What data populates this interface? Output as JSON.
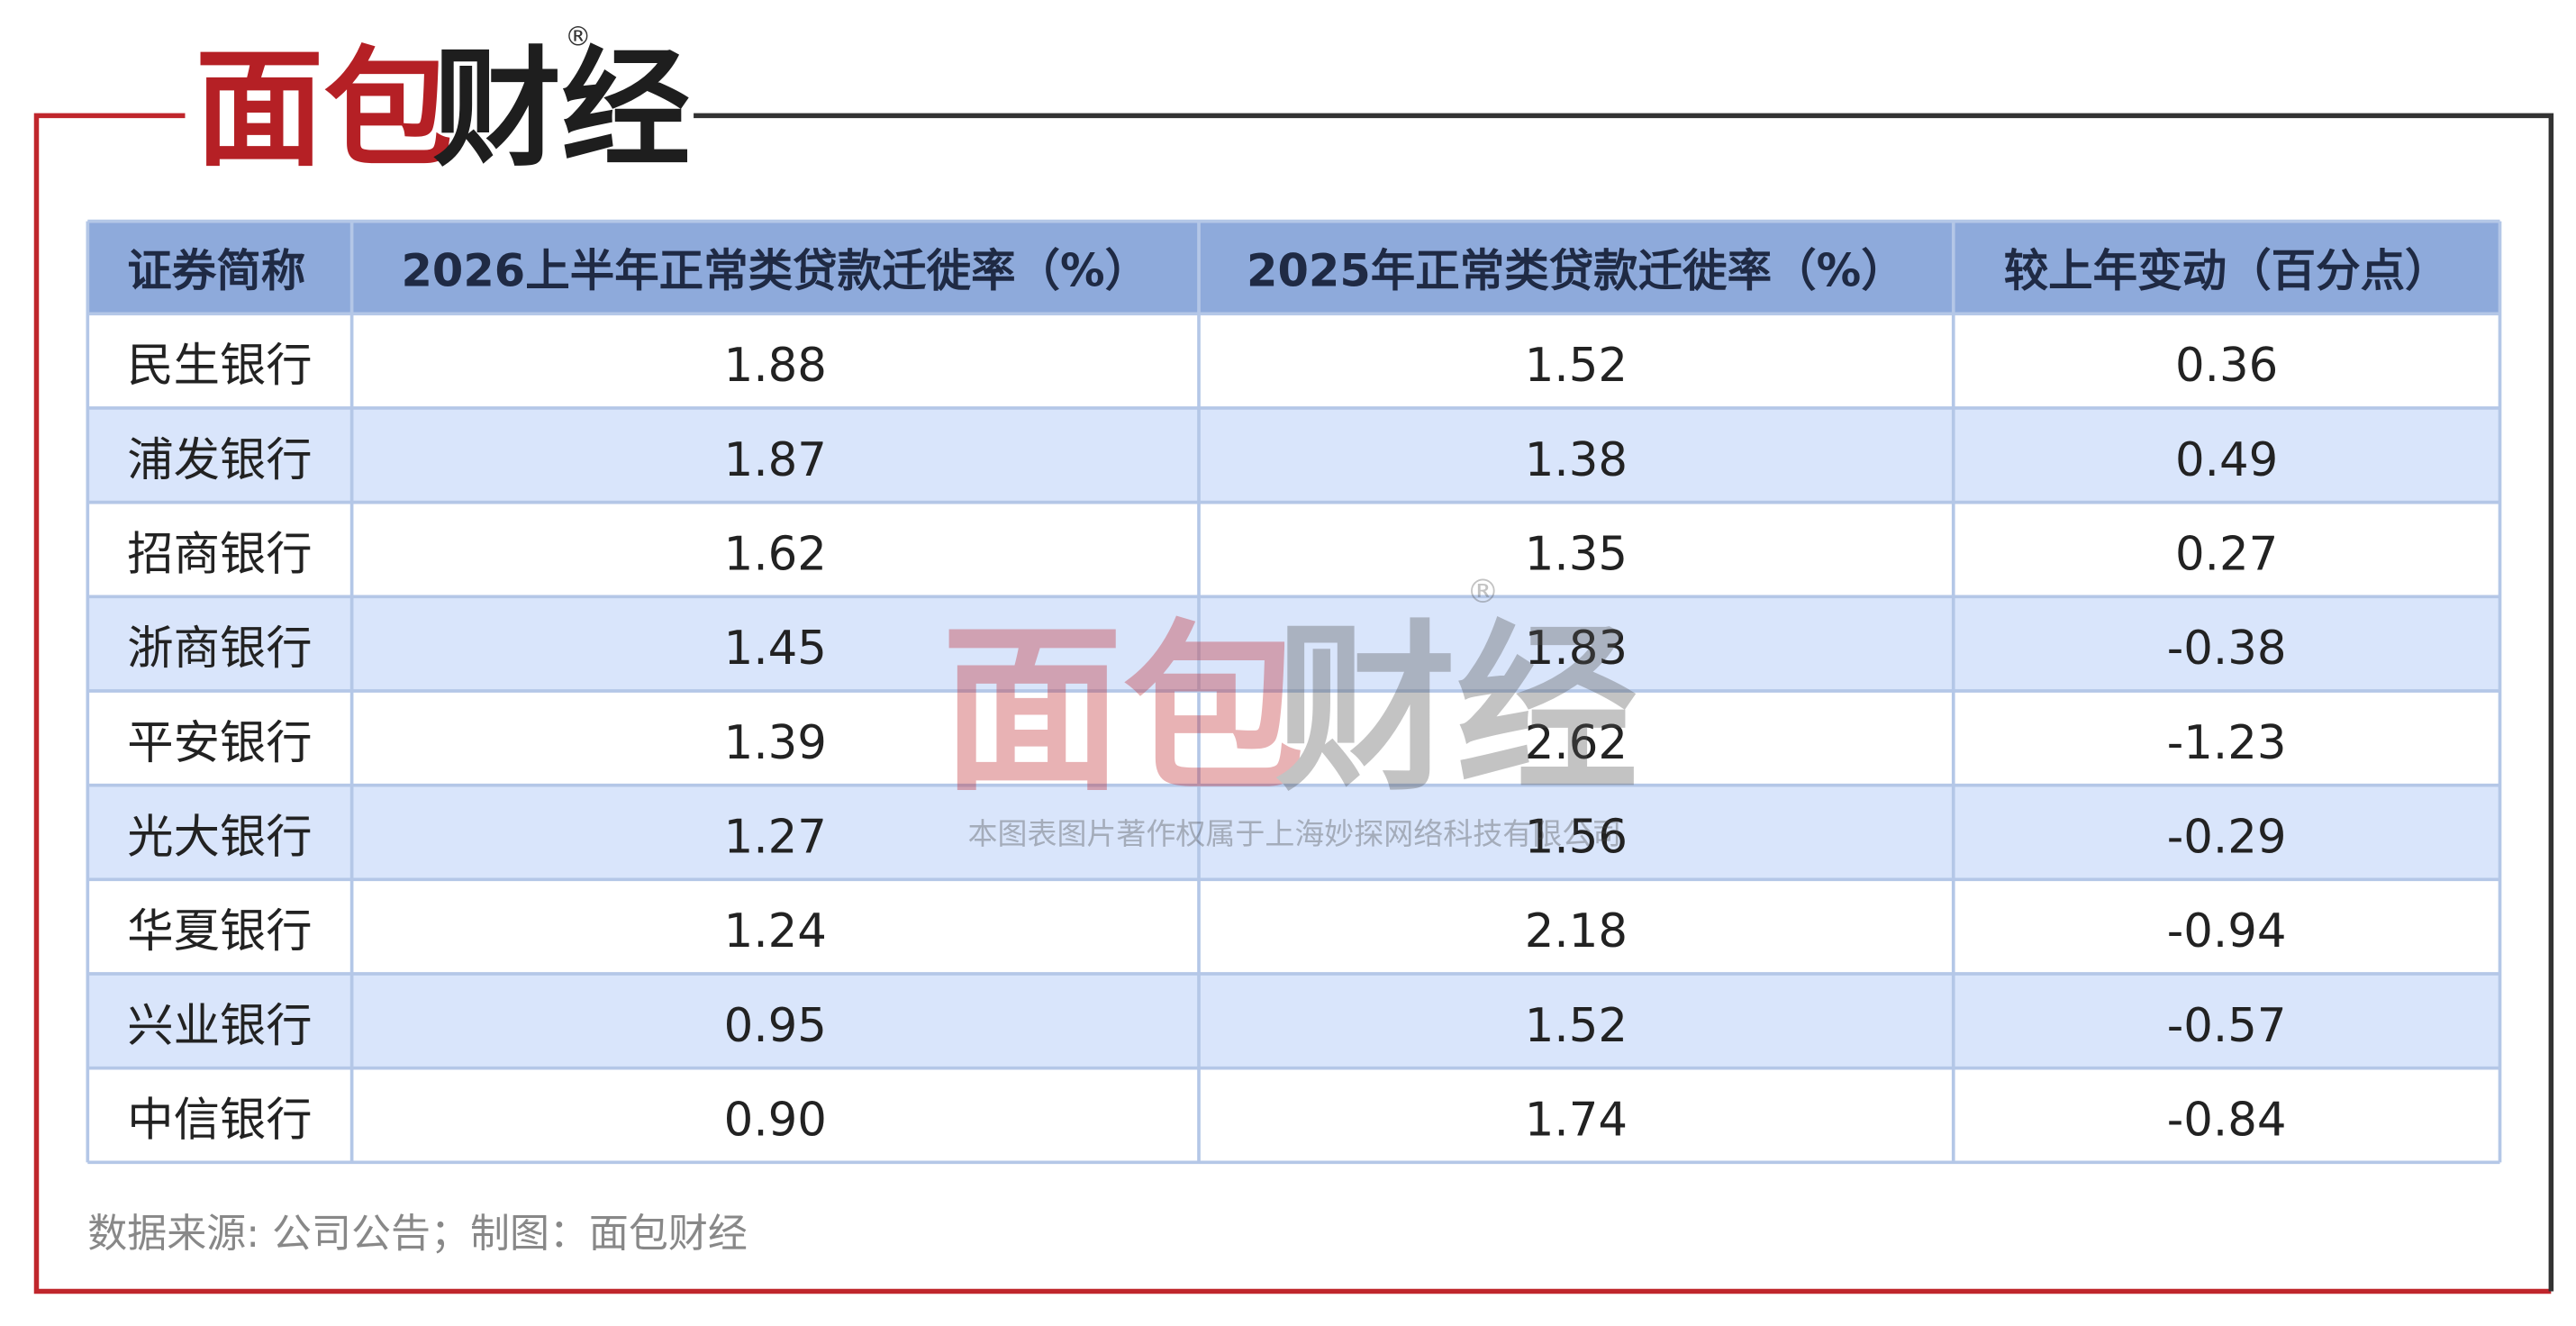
{
  "logo": {
    "red": "面包",
    "dark": "财经",
    "mark": "®"
  },
  "table": {
    "header": [
      "证券简称",
      "2026上半年正常类贷款迁徙率（%）",
      "2025年正常类贷款迁徙率（%）",
      "较上年变动（百分点）"
    ],
    "rows": [
      [
        "民生银行",
        "1.88",
        "1.52",
        "0.36"
      ],
      [
        "浦发银行",
        "1.87",
        "1.38",
        "0.49"
      ],
      [
        "招商银行",
        "1.62",
        "1.35",
        "0.27"
      ],
      [
        "浙商银行",
        "1.45",
        "1.83",
        "-0.38"
      ],
      [
        "平安银行",
        "1.39",
        "2.62",
        "-1.23"
      ],
      [
        "光大银行",
        "1.27",
        "1.56",
        "-0.29"
      ],
      [
        "华夏银行",
        "1.24",
        "2.18",
        "-0.94"
      ],
      [
        "兴业银行",
        "0.95",
        "1.52",
        "-0.57"
      ],
      [
        "中信银行",
        "0.90",
        "1.74",
        "-0.84"
      ]
    ]
  },
  "source": "数据来源: 公司公告；制图：面包财经",
  "watermark": {
    "red": "面包",
    "dark": "财经",
    "mark": "®",
    "note": "本图表图片著作权属于上海妙探网络科技有限公司"
  }
}
